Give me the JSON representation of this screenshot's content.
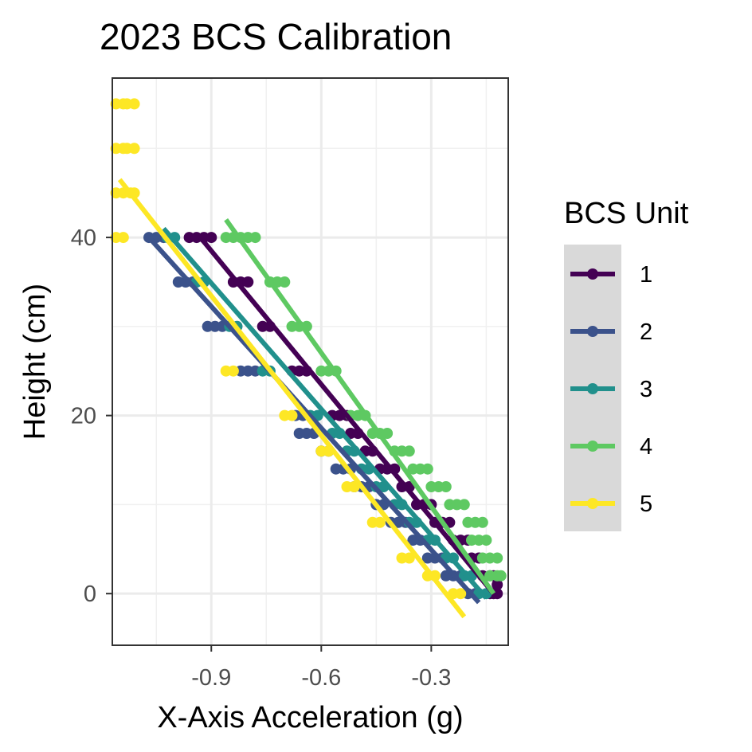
{
  "chart_data": {
    "type": "scatter",
    "title": "2023 BCS Calibration",
    "xlabel": "X-Axis Acceleration (g)",
    "ylabel": "Height (cm)",
    "xlim": [
      -1.17,
      -0.09
    ],
    "ylim": [
      -5.8,
      57.9
    ],
    "x_ticks": [
      -0.9,
      -0.6,
      -0.3
    ],
    "x_tick_labels": [
      "-0.9",
      "-0.6",
      "-0.3"
    ],
    "y_ticks": [
      0,
      20,
      40
    ],
    "y_tick_labels": [
      "0",
      "20",
      "40"
    ],
    "grid": true,
    "legend": {
      "title": "BCS Unit",
      "position": "right"
    },
    "series": [
      {
        "name": "1",
        "color": "#440154",
        "points": [
          [
            -0.96,
            40
          ],
          [
            -0.94,
            40
          ],
          [
            -0.92,
            40
          ],
          [
            -0.9,
            40
          ],
          [
            -0.84,
            35
          ],
          [
            -0.82,
            35
          ],
          [
            -0.8,
            35
          ],
          [
            -0.76,
            30
          ],
          [
            -0.74,
            30
          ],
          [
            -0.68,
            25
          ],
          [
            -0.66,
            25
          ],
          [
            -0.64,
            25
          ],
          [
            -0.57,
            20
          ],
          [
            -0.55,
            20
          ],
          [
            -0.53,
            20
          ],
          [
            -0.52,
            18
          ],
          [
            -0.5,
            18
          ],
          [
            -0.48,
            16
          ],
          [
            -0.46,
            16
          ],
          [
            -0.44,
            14
          ],
          [
            -0.42,
            14
          ],
          [
            -0.4,
            14
          ],
          [
            -0.38,
            12
          ],
          [
            -0.36,
            12
          ],
          [
            -0.34,
            10
          ],
          [
            -0.32,
            10
          ],
          [
            -0.3,
            10
          ],
          [
            -0.29,
            8
          ],
          [
            -0.27,
            8
          ],
          [
            -0.25,
            8
          ],
          [
            -0.24,
            6
          ],
          [
            -0.22,
            6
          ],
          [
            -0.2,
            6
          ],
          [
            -0.19,
            4
          ],
          [
            -0.17,
            4
          ],
          [
            -0.16,
            2
          ],
          [
            -0.14,
            2
          ],
          [
            -0.13,
            2
          ],
          [
            -0.14,
            0
          ],
          [
            -0.13,
            0
          ],
          [
            -0.12,
            0
          ],
          [
            -0.12,
            1
          ]
        ],
        "fit": [
          [
            -0.93,
            40
          ],
          [
            -0.13,
            0
          ]
        ]
      },
      {
        "name": "2",
        "color": "#3b528b",
        "points": [
          [
            -1.07,
            40
          ],
          [
            -1.05,
            40
          ],
          [
            -1.03,
            40
          ],
          [
            -0.99,
            35
          ],
          [
            -0.97,
            35
          ],
          [
            -0.95,
            35
          ],
          [
            -0.91,
            30
          ],
          [
            -0.89,
            30
          ],
          [
            -0.87,
            30
          ],
          [
            -0.82,
            25
          ],
          [
            -0.8,
            25
          ],
          [
            -0.78,
            25
          ],
          [
            -0.67,
            20
          ],
          [
            -0.65,
            20
          ],
          [
            -0.66,
            18
          ],
          [
            -0.64,
            18
          ],
          [
            -0.62,
            18
          ],
          [
            -0.6,
            16
          ],
          [
            -0.58,
            16
          ],
          [
            -0.56,
            14
          ],
          [
            -0.54,
            14
          ],
          [
            -0.52,
            14
          ],
          [
            -0.51,
            12
          ],
          [
            -0.49,
            12
          ],
          [
            -0.47,
            12
          ],
          [
            -0.45,
            10
          ],
          [
            -0.43,
            10
          ],
          [
            -0.41,
            8
          ],
          [
            -0.39,
            8
          ],
          [
            -0.37,
            8
          ],
          [
            -0.35,
            6
          ],
          [
            -0.33,
            6
          ],
          [
            -0.31,
            4
          ],
          [
            -0.29,
            4
          ],
          [
            -0.27,
            4
          ],
          [
            -0.26,
            2
          ],
          [
            -0.24,
            2
          ],
          [
            -0.22,
            2
          ],
          [
            -0.2,
            0
          ],
          [
            -0.18,
            0
          ]
        ],
        "fit": [
          [
            -1.07,
            40
          ],
          [
            -0.17,
            -1
          ]
        ]
      },
      {
        "name": "3",
        "color": "#21908c",
        "points": [
          [
            -1.02,
            40
          ],
          [
            -1.0,
            40
          ],
          [
            -0.94,
            35
          ],
          [
            -0.92,
            35
          ],
          [
            -0.85,
            30
          ],
          [
            -0.83,
            30
          ],
          [
            -0.76,
            25
          ],
          [
            -0.74,
            25
          ],
          [
            -0.63,
            20
          ],
          [
            -0.61,
            20
          ],
          [
            -0.57,
            18
          ],
          [
            -0.55,
            18
          ],
          [
            -0.53,
            16
          ],
          [
            -0.51,
            16
          ],
          [
            -0.49,
            14
          ],
          [
            -0.47,
            14
          ],
          [
            -0.45,
            12
          ],
          [
            -0.43,
            12
          ],
          [
            -0.4,
            10
          ],
          [
            -0.38,
            10
          ],
          [
            -0.36,
            8
          ],
          [
            -0.34,
            8
          ],
          [
            -0.31,
            6
          ],
          [
            -0.29,
            6
          ],
          [
            -0.26,
            4
          ],
          [
            -0.24,
            4
          ],
          [
            -0.21,
            2
          ],
          [
            -0.19,
            2
          ],
          [
            -0.17,
            0
          ],
          [
            -0.15,
            0
          ]
        ],
        "fit": [
          [
            -1.03,
            41
          ],
          [
            -0.15,
            -0.5
          ]
        ]
      },
      {
        "name": "4",
        "color": "#5ec962",
        "points": [
          [
            -0.86,
            40
          ],
          [
            -0.84,
            40
          ],
          [
            -0.82,
            40
          ],
          [
            -0.8,
            40
          ],
          [
            -0.78,
            40
          ],
          [
            -0.74,
            35
          ],
          [
            -0.72,
            35
          ],
          [
            -0.7,
            35
          ],
          [
            -0.68,
            30
          ],
          [
            -0.66,
            30
          ],
          [
            -0.64,
            30
          ],
          [
            -0.6,
            25
          ],
          [
            -0.58,
            25
          ],
          [
            -0.56,
            25
          ],
          [
            -0.52,
            20
          ],
          [
            -0.5,
            20
          ],
          [
            -0.48,
            20
          ],
          [
            -0.46,
            18
          ],
          [
            -0.44,
            18
          ],
          [
            -0.42,
            18
          ],
          [
            -0.4,
            16
          ],
          [
            -0.38,
            16
          ],
          [
            -0.36,
            16
          ],
          [
            -0.35,
            14
          ],
          [
            -0.33,
            14
          ],
          [
            -0.31,
            14
          ],
          [
            -0.3,
            12
          ],
          [
            -0.28,
            12
          ],
          [
            -0.26,
            12
          ],
          [
            -0.25,
            10
          ],
          [
            -0.23,
            10
          ],
          [
            -0.21,
            10
          ],
          [
            -0.2,
            8
          ],
          [
            -0.18,
            8
          ],
          [
            -0.16,
            8
          ],
          [
            -0.19,
            6
          ],
          [
            -0.17,
            6
          ],
          [
            -0.15,
            6
          ],
          [
            -0.16,
            4
          ],
          [
            -0.14,
            4
          ],
          [
            -0.12,
            4
          ],
          [
            -0.14,
            2
          ],
          [
            -0.12,
            2
          ],
          [
            -0.11,
            2
          ]
        ],
        "fit": [
          [
            -0.86,
            42
          ],
          [
            -0.13,
            0
          ]
        ]
      },
      {
        "name": "5",
        "color": "#fde725",
        "points": [
          [
            -1.16,
            55
          ],
          [
            -1.14,
            55
          ],
          [
            -1.13,
            55
          ],
          [
            -1.11,
            55
          ],
          [
            -1.16,
            50
          ],
          [
            -1.14,
            50
          ],
          [
            -1.13,
            50
          ],
          [
            -1.11,
            50
          ],
          [
            -1.16,
            45
          ],
          [
            -1.14,
            45
          ],
          [
            -1.12,
            45
          ],
          [
            -1.11,
            45
          ],
          [
            -1.16,
            40
          ],
          [
            -1.14,
            40
          ],
          [
            -0.86,
            25
          ],
          [
            -0.84,
            25
          ],
          [
            -0.7,
            20
          ],
          [
            -0.68,
            20
          ],
          [
            -0.6,
            16
          ],
          [
            -0.58,
            16
          ],
          [
            -0.53,
            12
          ],
          [
            -0.51,
            12
          ],
          [
            -0.46,
            8
          ],
          [
            -0.44,
            8
          ],
          [
            -0.38,
            4
          ],
          [
            -0.36,
            4
          ],
          [
            -0.31,
            2
          ],
          [
            -0.29,
            2
          ],
          [
            -0.24,
            0
          ],
          [
            -0.22,
            0
          ]
        ],
        "fit": [
          [
            -1.15,
            46.5
          ],
          [
            -0.21,
            -2.6
          ]
        ]
      }
    ]
  }
}
